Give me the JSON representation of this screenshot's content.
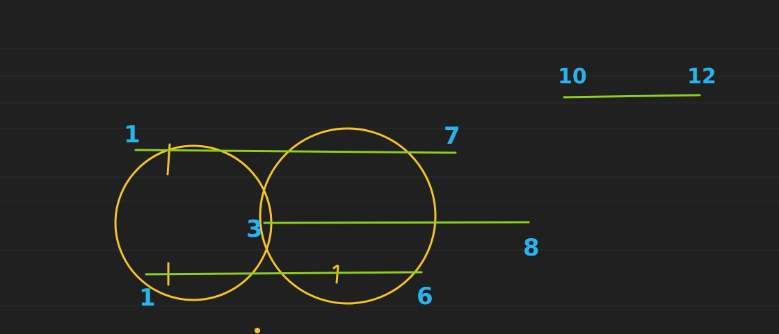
{
  "colors": {
    "background": "#202020",
    "circle": "#f5c22c",
    "segment": "#8ccf1c",
    "label": "#27b4ec",
    "faint_line": "#262626",
    "pointer": "#f5c22c"
  },
  "labels": {
    "label_1_top": "1",
    "label_7": "7",
    "label_3": "3",
    "label_8": "8",
    "label_1_bottom": "1",
    "label_6": "6",
    "label_10": "10",
    "label_12": "12"
  }
}
